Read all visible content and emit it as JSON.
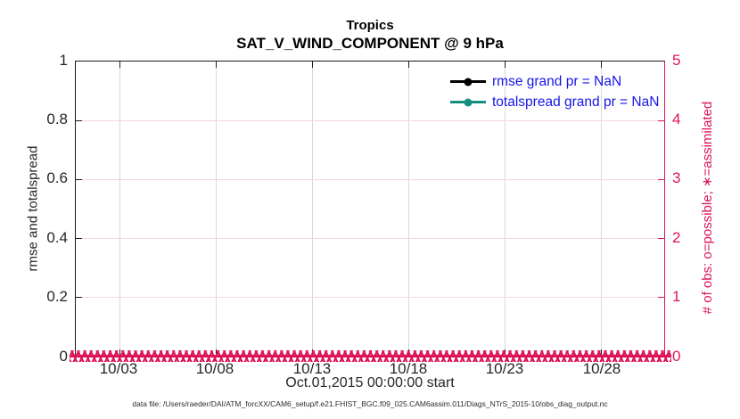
{
  "title": {
    "line1": "Tropics",
    "line2": "SAT_V_WIND_COMPONENT @ 9 hPa"
  },
  "left_axis": {
    "label": "rmse and totalspread",
    "ticks": [
      "0",
      "0.2",
      "0.4",
      "0.6",
      "0.8",
      "1"
    ],
    "range": [
      0,
      1
    ],
    "color": "#262626"
  },
  "right_axis": {
    "label": "# of obs: o=possible; ∗=assimilated",
    "ticks": [
      "0",
      "1",
      "2",
      "3",
      "4",
      "5"
    ],
    "range": [
      0,
      5
    ],
    "color": "#de1459"
  },
  "x_axis": {
    "ticks": [
      "10/03",
      "10/08",
      "10/13",
      "10/18",
      "10/23",
      "10/28"
    ],
    "label": "Oct.01,2015 00:00:00 start"
  },
  "legend": {
    "entries": [
      {
        "label": "rmse grand pr = NaN",
        "color": "#000000",
        "marker": "filled-circle"
      },
      {
        "label": "totalspread grand pr = NaN",
        "color": "#178f80",
        "marker": "filled-circle"
      }
    ],
    "text_color": "#1616e8",
    "position": "upper-right"
  },
  "obs_band": {
    "symbol": "∗",
    "color": "#de1459",
    "value": 0,
    "description": "dense assimilated-obs markers plotted at y=0 across the full time axis"
  },
  "footer": "data file: /Users/raeder/DAI/ATM_forcXX/CAM6_setup/f.e21.FHIST_BGC.f09_025.CAM6assim.011/Diags_NTrS_2015-10/obs_diag_output.nc",
  "chart_data": {
    "type": "line",
    "title": "Tropics",
    "subtitle": "SAT_V_WIND_COMPONENT @ 9 hPa",
    "xlabel": "Oct.01,2015 00:00:00 start",
    "ylabel_left": "rmse and totalspread",
    "ylabel_right": "# of obs: o=possible; ∗=assimilated",
    "x_ticks": [
      "10/03",
      "10/08",
      "10/13",
      "10/18",
      "10/23",
      "10/28"
    ],
    "x_range_days": [
      "2015-10-01",
      "2015-10-31"
    ],
    "ylim_left": [
      0,
      1
    ],
    "ylim_right": [
      0,
      5
    ],
    "grid": true,
    "legend_position": "upper right",
    "series": [
      {
        "name": "rmse grand pr = NaN",
        "color": "#000000",
        "axis": "left",
        "values": null,
        "note": "all values NaN - no curve drawn"
      },
      {
        "name": "totalspread grand pr = NaN",
        "color": "#178f80",
        "axis": "left",
        "values": null,
        "note": "all values NaN - no curve drawn"
      },
      {
        "name": "assimilated observation count",
        "color": "#de1459",
        "axis": "right",
        "marker": "∗",
        "constant_value": 0,
        "note": "dense markers at y=0 spanning entire x range"
      }
    ]
  }
}
